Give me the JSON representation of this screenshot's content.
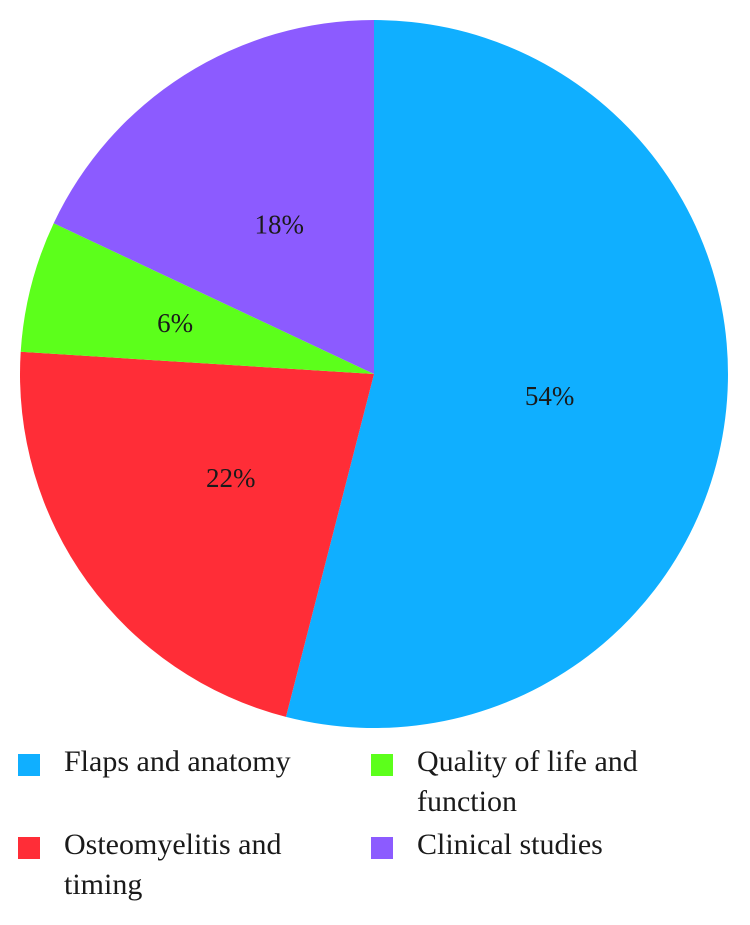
{
  "chart_data": {
    "type": "pie",
    "start_angle": "12 o'clock, clockwise",
    "slices": [
      {
        "label": "Flaps and anatomy",
        "value": 54,
        "display": "54%",
        "color": "#10afff"
      },
      {
        "label": "Osteomyelitis and timing",
        "value": 22,
        "display": "22%",
        "color": "#ff2d37"
      },
      {
        "label": "Quality of life and function",
        "value": 6,
        "display": "6%",
        "color": "#5cff1b"
      },
      {
        "label": "Clinical studies",
        "value": 18,
        "display": "18%",
        "color": "#8c5bff"
      }
    ],
    "legend": {
      "placement": "bottom",
      "items": [
        {
          "label": "Flaps and anatomy",
          "color": "#10afff"
        },
        {
          "label": "Quality of life and function",
          "color": "#5cff1b"
        },
        {
          "label": "Osteomyelitis and timing",
          "color": "#ff2d37"
        },
        {
          "label": "Clinical studies",
          "color": "#8c5bff"
        }
      ]
    }
  }
}
